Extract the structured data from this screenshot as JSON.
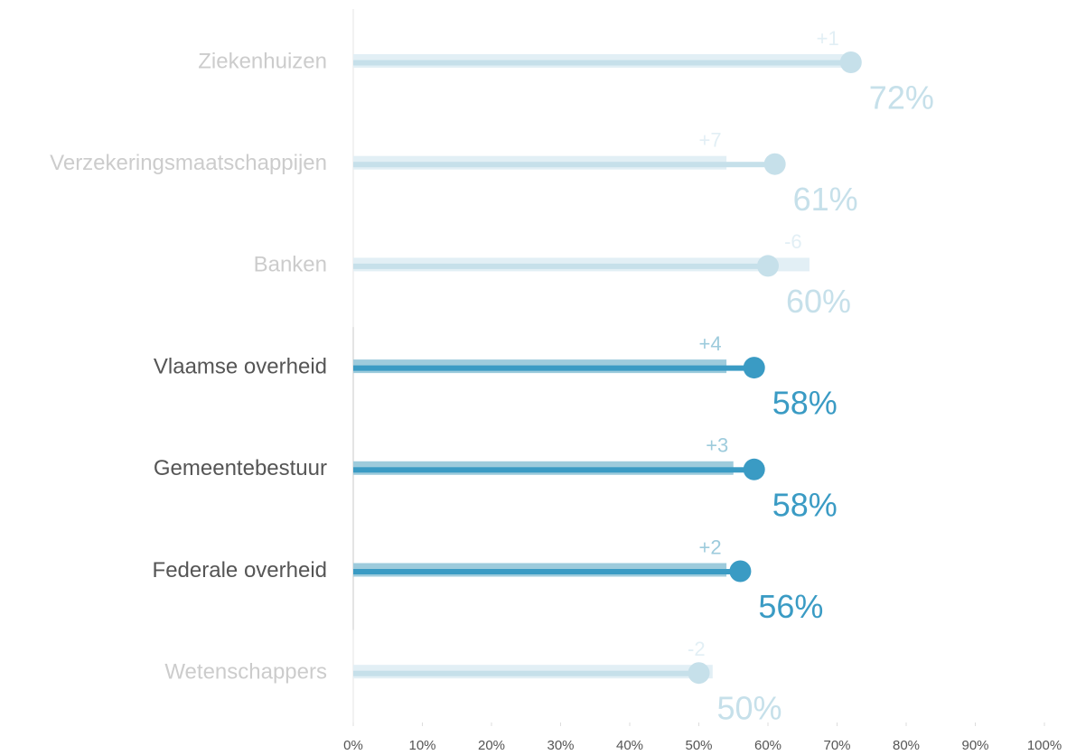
{
  "chart_data": {
    "type": "lollipop",
    "categories": [
      "Ziekenhuizen",
      "Verzekeringsmaatschappijen",
      "Banken",
      "Vlaamse overheid",
      "Gemeentebestuur",
      "Federale overheid",
      "Wetenschappers"
    ],
    "values": [
      72,
      61,
      60,
      58,
      58,
      56,
      50
    ],
    "value_labels": [
      "72%",
      "61%",
      "60%",
      "58%",
      "58%",
      "56%",
      "50%"
    ],
    "previous": [
      71,
      54,
      66,
      54,
      55,
      54,
      52
    ],
    "changes": [
      1,
      7,
      -6,
      4,
      3,
      2,
      -2
    ],
    "change_labels": [
      "+1",
      "+7",
      "-6",
      "+4",
      "+3",
      "+2",
      "-2"
    ],
    "highlight": [
      false,
      false,
      false,
      true,
      true,
      true,
      false
    ],
    "colors": {
      "highlight": "#3a9bc4",
      "muted": "#c6e0ea",
      "previous_highlight": "#9dcbdc",
      "previous_muted": "#e2eff5",
      "label_highlight": "#555555",
      "label_muted": "#cccccc"
    },
    "xlim": [
      0,
      100
    ],
    "xticks": [
      {
        "value": 0,
        "label": "0%"
      },
      {
        "value": 10,
        "label": "10%"
      },
      {
        "value": 20,
        "label": "20%"
      },
      {
        "value": 30,
        "label": "30%"
      },
      {
        "value": 40,
        "label": "40%"
      },
      {
        "value": 50,
        "label": "50%"
      },
      {
        "value": 60,
        "label": "60%"
      },
      {
        "value": 70,
        "label": "70%"
      },
      {
        "value": 80,
        "label": "80%"
      },
      {
        "value": 90,
        "label": "90%"
      },
      {
        "value": 100,
        "label": "100%"
      }
    ]
  }
}
